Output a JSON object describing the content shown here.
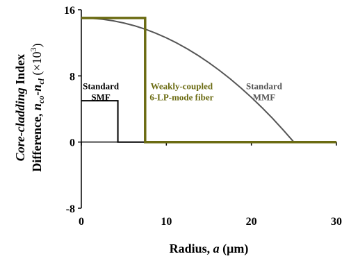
{
  "chart_data": {
    "type": "line",
    "title": "",
    "xlabel": {
      "main": "Radius, ",
      "var": "a",
      "unit": " (μm)"
    },
    "ylabel": {
      "line1": {
        "italic": "Core-cladding",
        "rest": " Index"
      },
      "line2": {
        "pre": "Difference, ",
        "n1": "n",
        "s1": "co",
        "dash": "-",
        "n2": "n",
        "s2": "cl",
        "post1": " (×10",
        "sup": "3",
        "post2": ")"
      }
    },
    "xlim": [
      0,
      30
    ],
    "ylim": [
      -8,
      16
    ],
    "x_ticks": [
      0,
      10,
      20,
      30
    ],
    "y_ticks": [
      -8,
      0,
      8,
      16
    ],
    "grid": false,
    "series": [
      {
        "name": "Standard SMF",
        "color": "#000000",
        "x": [
          0,
          4.3,
          4.3,
          30
        ],
        "y": [
          5,
          5,
          0,
          0
        ]
      },
      {
        "name": "Standard MMF",
        "color": "#555555",
        "x": [
          0,
          1.25,
          2.5,
          3.75,
          5,
          6.25,
          7.5,
          8.75,
          10,
          11.25,
          12.5,
          13.75,
          15,
          16.25,
          17.5,
          18.75,
          20,
          21.25,
          22.5,
          23.75,
          25,
          30
        ],
        "y": [
          15,
          14.96,
          14.85,
          14.66,
          14.4,
          14.06,
          13.65,
          13.16,
          12.6,
          11.96,
          11.25,
          10.46,
          9.6,
          8.66,
          7.65,
          6.56,
          5.4,
          4.16,
          2.85,
          1.46,
          0,
          0
        ]
      },
      {
        "name": "Weakly-coupled 6-LP-mode fiber",
        "color": "#6b6b12",
        "x": [
          0,
          7.5,
          7.5,
          30
        ],
        "y": [
          15,
          15,
          0,
          0
        ]
      }
    ],
    "annotations": [
      {
        "lines": [
          "Standard",
          "SMF"
        ],
        "color": "#000000",
        "x": 2.3,
        "y": 6.4
      },
      {
        "lines": [
          "Weakly-coupled",
          "6-LP-mode fiber"
        ],
        "color": "#6b6b12",
        "x": 11.8,
        "y": 6.4
      },
      {
        "lines": [
          "Standard",
          "MMF"
        ],
        "color": "#555555",
        "x": 21.5,
        "y": 6.4
      }
    ]
  }
}
